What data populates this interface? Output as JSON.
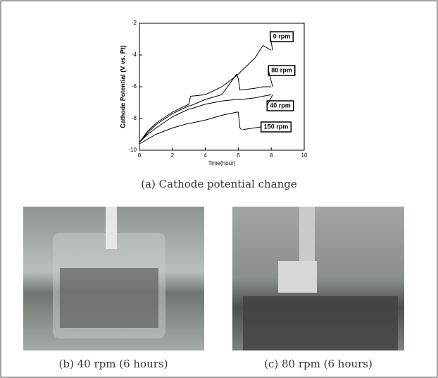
{
  "chart_data": {
    "type": "line",
    "xlabel": "Time(hour)",
    "ylabel": "Cathode Potential (V vs. Pt)",
    "x": [
      0,
      0.5,
      1,
      2,
      3,
      3.1,
      4,
      5,
      5.9,
      6,
      6.1,
      6.2,
      7,
      7.5,
      8
    ],
    "series": [
      {
        "name": "0 rpm",
        "color": "#000000",
        "values": [
          -9.5,
          -8.8,
          -8.3,
          -7.6,
          -7.1,
          -6.6,
          -6.5,
          -6.0,
          -5.3,
          -5.2,
          -5.1,
          -5.0,
          -4.2,
          -3.4,
          -3.7
        ]
      },
      {
        "name": "80 rpm",
        "color": "#000000",
        "values": [
          -9.5,
          -8.9,
          -8.4,
          -7.7,
          -7.2,
          -7.2,
          -6.8,
          -6.5,
          -5.2,
          -5.5,
          -6.2,
          -6.2,
          -6.1,
          -6.0,
          -6.0
        ]
      },
      {
        "name": "40 rpm",
        "color": "#000000",
        "values": [
          -9.5,
          -9.0,
          -8.6,
          -7.9,
          -7.4,
          -7.4,
          -7.1,
          -6.9,
          -6.8,
          -6.8,
          -6.8,
          -6.8,
          -6.7,
          -6.6,
          -6.5
        ]
      },
      {
        "name": "150 rpm",
        "color": "#000000",
        "values": [
          -9.6,
          -9.3,
          -9.0,
          -8.6,
          -8.3,
          -8.3,
          -8.1,
          -7.8,
          -7.6,
          -7.6,
          -8.6,
          -8.7,
          null,
          null,
          null
        ]
      }
    ],
    "xlim": [
      0,
      10
    ],
    "xticks": [
      0,
      2,
      4,
      6,
      8,
      10
    ],
    "ylim": [
      -10,
      -2
    ],
    "yticks": [
      -10,
      -8,
      -6,
      -4,
      -2
    ]
  },
  "captions": [
    "(a) Cathode potential change",
    "(b) 40 rpm (6 hours)",
    "(c) 80 rpm (6 hours)"
  ]
}
